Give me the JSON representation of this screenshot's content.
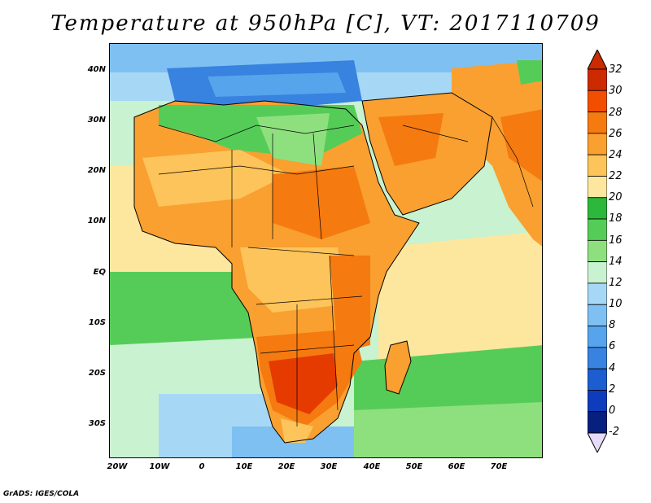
{
  "title": "Temperature at 950hPa [C], VT: 2017110709",
  "credit": "GrADS: IGES/COLA",
  "y_axis_labels": [
    "40N",
    "30N",
    "20N",
    "10N",
    "EQ",
    "10S",
    "20S",
    "30S"
  ],
  "x_axis_labels": [
    "20W",
    "10W",
    "0",
    "10E",
    "20E",
    "30E",
    "40E",
    "50E",
    "60E",
    "70E"
  ],
  "colorbar": {
    "labels": [
      "32",
      "30",
      "28",
      "26",
      "24",
      "22",
      "20",
      "18",
      "16",
      "14",
      "12",
      "10",
      "8",
      "6",
      "4",
      "2",
      "0",
      "-2"
    ],
    "colors": [
      "#cc2a00",
      "#f24e00",
      "#f57a10",
      "#f9a030",
      "#fcc45a",
      "#fde79e",
      "#2cb83a",
      "#56cc58",
      "#8ee07e",
      "#c8f2d0",
      "#a6d8f6",
      "#7ec0f2",
      "#56a4ec",
      "#3882e0",
      "#1c5ed0",
      "#0f3cbc",
      "#071f7e"
    ],
    "top_arrow": "#cc2a00",
    "bottom_arrow": "#e6dcfa"
  },
  "map_colors": {
    "ocean_cold": "#7ec0f2",
    "ocean_cool": "#a6d8f6",
    "ocean_mild": "#c8f2d0",
    "ocean_warm": "#fde79e",
    "land_green": "#56cc58",
    "land_warm": "#fcc45a",
    "land_hot": "#f9a030",
    "land_very_hot": "#f57a10",
    "land_extreme": "#e53b00",
    "med_sea": "#3882e0"
  }
}
